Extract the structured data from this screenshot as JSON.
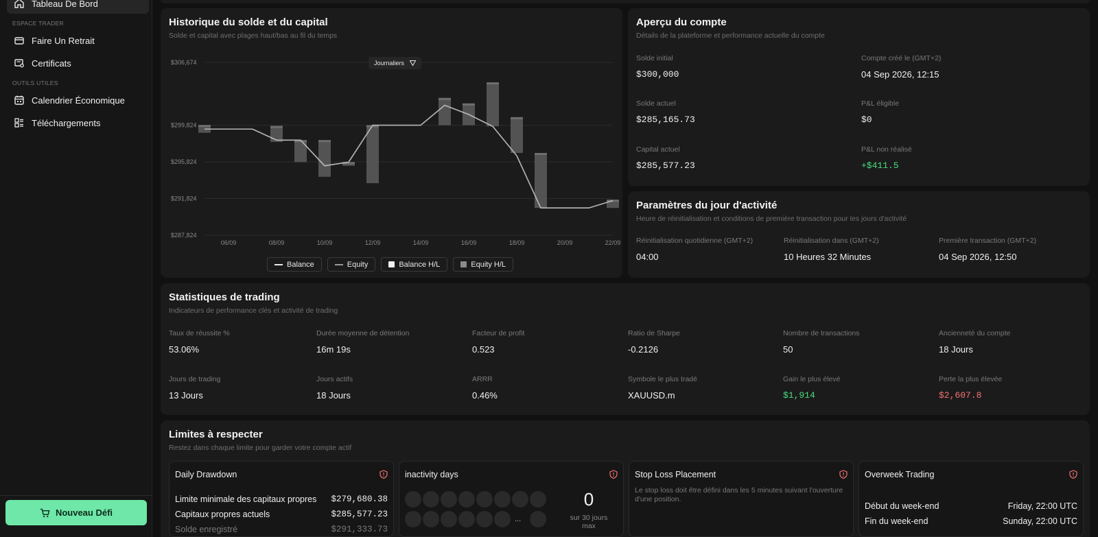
{
  "sidebar": {
    "dashboard": "Tableau De Bord",
    "section_trader": "ESPACE TRADER",
    "withdraw": "Faire Un Retrait",
    "certificates": "Certificats",
    "section_tools": "OUTILS UTILES",
    "calendar": "Calendrier Économique",
    "downloads": "Téléchargements",
    "new_challenge": "Nouveau Défi"
  },
  "history": {
    "title": "Historique du solde et du capital",
    "subtitle": "Solde et capital avec plages haut/bas au fil du temps",
    "period": "Journaliers",
    "legend": [
      "Balance",
      "Equity",
      "Balance H/L",
      "Equity H/L"
    ]
  },
  "chart_data": {
    "type": "line",
    "y_ticks": [
      "$306,674",
      "$299,824",
      "$295,824",
      "$291,824",
      "$287,824"
    ],
    "y_tick_values": [
      306674,
      299824,
      295824,
      291824,
      287824
    ],
    "x_ticks": [
      "06/09",
      "08/09",
      "10/09",
      "12/09",
      "14/09",
      "16/09",
      "18/09",
      "20/09",
      "22/09"
    ],
    "x": [
      "05/09",
      "06/09",
      "07/09",
      "08/09",
      "09/09",
      "10/09",
      "11/09",
      "12/09",
      "13/09",
      "14/09",
      "15/09",
      "16/09",
      "17/09",
      "18/09",
      "19/09",
      "20/09",
      "21/09",
      "22/09"
    ],
    "series": [
      {
        "name": "Balance",
        "values": [
          299400,
          299400,
          299400,
          298200,
          298200,
          295400,
          295800,
          299824,
          299824,
          299824,
          302000,
          301000,
          299700,
          296500,
          290800,
          290800,
          290800,
          291600
        ]
      },
      {
        "name": "Equity",
        "values": [
          299400,
          299400,
          299400,
          298200,
          298200,
          295400,
          295800,
          299824,
          299824,
          299824,
          302000,
          301000,
          299700,
          296500,
          290800,
          290800,
          290800,
          291600
        ]
      }
    ],
    "candles": [
      {
        "x": "05/09",
        "high": 299850,
        "low": 299000
      },
      {
        "x": "08/09",
        "high": 299750,
        "low": 298000
      },
      {
        "x": "09/09",
        "high": 298200,
        "low": 295800
      },
      {
        "x": "10/09",
        "high": 298200,
        "low": 294200
      },
      {
        "x": "11/09",
        "high": 295800,
        "low": 295400
      },
      {
        "x": "12/09",
        "high": 299824,
        "low": 293500
      },
      {
        "x": "15/09",
        "high": 302800,
        "low": 299824
      },
      {
        "x": "16/09",
        "high": 302200,
        "low": 299824
      },
      {
        "x": "17/09",
        "high": 304500,
        "low": 299700
      },
      {
        "x": "18/09",
        "high": 300700,
        "low": 296800
      },
      {
        "x": "19/09",
        "high": 296800,
        "low": 290800
      },
      {
        "x": "22/09",
        "high": 291700,
        "low": 290800
      }
    ],
    "ylim": [
      287824,
      306674
    ],
    "grid": true,
    "legend_position": "bottom"
  },
  "account": {
    "title": "Aperçu du compte",
    "subtitle": "Détails de la plateforme et performance actuelle du compte",
    "initial_label": "Solde initial",
    "initial": "$300,000",
    "created_label": "Compte créé le (GMT+2)",
    "created": "04 Sep 2026, 12:15",
    "current_label": "Solde actuel",
    "current": "$285,165.73",
    "eligible_label": "P&L éligible",
    "eligible": "$0",
    "equity_label": "Capital actuel",
    "equity": "$285,577.23",
    "unrealized_label": "P&L non réalisé",
    "unrealized": "+$411.5"
  },
  "activity": {
    "title": "Paramètres du jour d'activité",
    "subtitle": "Heure de réinitialisation et conditions de première transaction pour les jours d'activité",
    "reset_label": "Réinitialisation quotidienne (GMT+2)",
    "reset": "04:00",
    "in_label": "Réinitialisation dans (GMT+2)",
    "in": "10 Heures 32 Minutes",
    "first_label": "Première transaction (GMT+2)",
    "first": "04 Sep 2026, 12:50"
  },
  "stats": {
    "title": "Statistiques de trading",
    "subtitle": "Indicateurs de performance clés et activité de trading",
    "items": [
      {
        "label": "Taux de réussite %",
        "value": "53.06%"
      },
      {
        "label": "Durée moyenne de détention",
        "value": "16m 19s"
      },
      {
        "label": "Facteur de profit",
        "value": "0.523"
      },
      {
        "label": "Ratio de Sharpe",
        "value": "-0.2126"
      },
      {
        "label": "Nombre de transactions",
        "value": "50"
      },
      {
        "label": "Ancienneté du compte",
        "value": "18 Jours"
      },
      {
        "label": "Jours de trading",
        "value": "13 Jours"
      },
      {
        "label": "Jours actifs",
        "value": "18 Jours"
      },
      {
        "label": "ARRR",
        "value": "0.46%"
      },
      {
        "label": "Symbole le plus tradé",
        "value": "XAUUSD.m"
      },
      {
        "label": "Gain le plus élevé",
        "value": "$1,914"
      },
      {
        "label": "Perte la plus élevée",
        "value": "$2,607.8"
      }
    ]
  },
  "limits": {
    "title": "Limites à respecter",
    "subtitle": "Restez dans chaque limite pour garder votre compte actif",
    "daily": {
      "title": "Daily Drawdown",
      "min_label": "Limite minimale des capitaux propres",
      "min": "$279,680.38",
      "cur_label": "Capitaux propres actuels",
      "cur": "$285,577.23",
      "rec_label": "Solde enregistré",
      "rec": "$291,333.73"
    },
    "inactivity": {
      "title": "inactivity days",
      "count": "0",
      "caption": "sur 30 jours max",
      "ellipsis": "..."
    },
    "stoploss": {
      "title": "Stop Loss Placement",
      "text": "Le stop loss doit être défini dans les 5 minutes suivant l'ouverture d'une position."
    },
    "overweek": {
      "title": "Overweek Trading",
      "start_label": "Début du week-end",
      "start": "Friday, 22:00 UTC",
      "end_label": "Fin du week-end",
      "end": "Sunday, 22:00 UTC"
    }
  }
}
